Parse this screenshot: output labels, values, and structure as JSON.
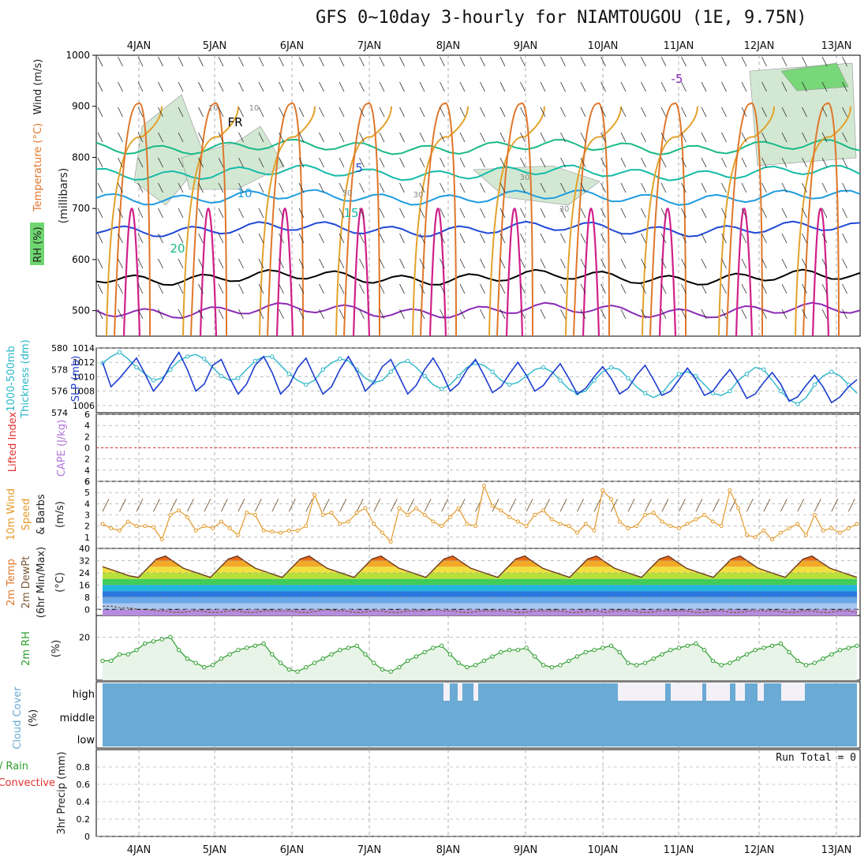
{
  "title": "GFS 0~10day 3-hourly for NIAMTOUGOU (1E, 9.75N)",
  "colors": {
    "grid": "#9a9a9a",
    "rh_fill": "#cfe6cf",
    "rh_dark": "#6fd66f",
    "temp_neg": "#8a2bb5",
    "temp_fr": "#000000",
    "temp_5": "#1f49d6",
    "temp_10": "#1f9ce0",
    "temp_15": "#14bba8",
    "temp_20": "#19b98a",
    "temp_25": "#e3a12a",
    "temp_30": "#e0762a",
    "temp_35": "#d0208a",
    "thickness": "#2bb6c9",
    "slp": "#1c3ccf",
    "li": "#e03030",
    "wind": "#e39a2a",
    "rh2m": "#2e9e2e",
    "cloud": "#6aaad4",
    "precip": "#2e9e2e"
  },
  "chart_data": [
    {
      "panel": "upper-air",
      "type": "contour",
      "ylabels": [
        "RH (%)",
        "Temperature (°C)",
        "Wind (m/s)"
      ],
      "yaxis_name": "(millibars)",
      "y_ticks": [
        "500",
        "600",
        "700",
        "800",
        "900",
        "1000"
      ],
      "ylim": [
        450,
        1000
      ],
      "x_ticks": [
        "4JAN",
        "5JAN",
        "6JAN",
        "7JAN",
        "8JAN",
        "9JAN",
        "10JAN",
        "11JAN",
        "12JAN",
        "13JAN"
      ],
      "contour_labels": [
        {
          "text": "-5",
          "level": 500
        },
        {
          "text": "FR",
          "level": 565
        },
        {
          "text": "5",
          "level": 670
        },
        {
          "text": "10",
          "level": 725
        },
        {
          "text": "15",
          "level": 765
        },
        {
          "text": "20",
          "level": 825
        }
      ],
      "rh_labels": [
        "10",
        "10",
        "30",
        "30",
        "30",
        "30"
      ],
      "isotherms": [
        {
          "name": "-5",
          "level": 500
        },
        {
          "name": "FR",
          "level": 565
        },
        {
          "name": "5",
          "level": 660
        },
        {
          "name": "10",
          "level": 722
        },
        {
          "name": "15",
          "level": 770
        },
        {
          "name": "20",
          "level": 820
        }
      ]
    },
    {
      "panel": "thickness-slp",
      "type": "line",
      "ylabels": [
        "1000-500mb",
        "Thickness (dm)",
        "SLP (mb)"
      ],
      "thickness_ticks": [
        "574",
        "576",
        "578",
        "580"
      ],
      "slp_ticks": [
        "1006",
        "1008",
        "1010",
        "1012",
        "1014"
      ],
      "thickness_ylim": [
        574,
        580
      ],
      "slp_ylim": [
        1005,
        1014
      ],
      "series": [
        {
          "type": "thickness",
          "values": [
            578.6,
            579.2,
            579.6,
            579.0,
            578.2,
            577.6,
            577.0,
            577.2,
            578.0,
            578.8,
            579.2,
            579.4,
            579.0,
            578.2,
            577.4,
            577.0,
            577.2,
            578.0,
            578.8,
            579.2,
            579.2,
            578.4,
            577.6,
            577.0,
            576.6,
            577.0,
            578.0,
            578.6,
            579.0,
            578.8,
            578.0,
            577.2,
            576.8,
            577.0,
            577.8,
            578.6,
            578.8,
            578.2,
            577.4,
            576.6,
            576.2,
            576.6,
            577.4,
            578.2,
            578.6,
            578.4,
            577.8,
            577.0,
            576.6,
            576.8,
            577.4,
            578.0,
            578.2,
            577.8,
            577.0,
            576.2,
            575.8,
            576.0,
            577.0,
            577.8,
            578.2,
            578.0,
            577.2,
            576.4,
            575.8,
            575.4,
            575.8,
            576.8,
            577.6,
            577.8,
            577.4,
            576.6,
            575.8,
            575.6,
            576.0,
            577.0,
            577.6,
            578.2,
            578.0,
            577.0,
            576.0,
            575.2,
            574.8,
            575.4,
            576.6,
            577.4,
            577.8,
            577.4,
            576.6,
            575.8
          ]
        },
        {
          "type": "slp",
          "values": [
            1012.0,
            1008.6,
            1009.8,
            1011.2,
            1012.6,
            1010.4,
            1008.0,
            1009.4,
            1011.6,
            1013.4,
            1011.0,
            1008.0,
            1009.0,
            1011.6,
            1012.4,
            1009.8,
            1007.6,
            1009.0,
            1011.6,
            1012.8,
            1010.6,
            1007.6,
            1008.8,
            1011.2,
            1012.6,
            1010.0,
            1007.6,
            1008.6,
            1011.0,
            1012.8,
            1010.8,
            1008.0,
            1009.2,
            1011.4,
            1012.4,
            1010.0,
            1007.6,
            1008.8,
            1011.0,
            1012.6,
            1010.6,
            1008.0,
            1009.0,
            1011.0,
            1012.4,
            1010.2,
            1007.8,
            1008.6,
            1010.4,
            1012.0,
            1010.2,
            1008.0,
            1008.8,
            1010.4,
            1011.8,
            1009.8,
            1007.6,
            1008.4,
            1010.0,
            1011.4,
            1009.8,
            1007.6,
            1008.4,
            1010.2,
            1011.6,
            1009.6,
            1007.4,
            1008.0,
            1009.6,
            1011.2,
            1009.6,
            1007.4,
            1008.0,
            1009.6,
            1011.0,
            1009.2,
            1007.0,
            1007.6,
            1009.2,
            1010.6,
            1009.0,
            1006.6,
            1007.2,
            1008.8,
            1010.2,
            1008.6,
            1006.4,
            1007.2,
            1008.6,
            1009.6
          ]
        }
      ]
    },
    {
      "panel": "cape-li",
      "type": "line",
      "ylabels": [
        "CAPE (J/kg)",
        "Lifted Index"
      ],
      "y_ticks": [
        "-6",
        "-4",
        "-2",
        "0",
        "2",
        "4",
        "6"
      ],
      "ylim": [
        -6,
        6
      ],
      "series": [
        {
          "type": "lifted_index",
          "values": [
            0
          ]
        }
      ]
    },
    {
      "panel": "wind10m",
      "type": "line",
      "ylabels": [
        "10m Wind",
        "Speed",
        "& Barbs"
      ],
      "yaxis_name": "(m/s)",
      "y_ticks": [
        "1",
        "2",
        "3",
        "4",
        "5",
        "6"
      ],
      "ylim": [
        0,
        6
      ],
      "series": [
        {
          "type": "wind_speed",
          "values": [
            2.2,
            1.8,
            1.6,
            2.4,
            2.0,
            2.0,
            1.9,
            0.8,
            3.0,
            3.4,
            2.8,
            1.6,
            2.0,
            1.8,
            2.4,
            1.8,
            1.2,
            3.2,
            3.0,
            1.6,
            1.5,
            1.4,
            1.6,
            1.6,
            2.0,
            4.8,
            3.0,
            3.2,
            2.2,
            2.4,
            3.2,
            3.6,
            2.2,
            1.4,
            0.6,
            3.6,
            3.0,
            3.6,
            3.0,
            2.4,
            2.0,
            2.8,
            3.6,
            2.2,
            2.0,
            5.6,
            3.8,
            3.4,
            2.8,
            2.4,
            2.0,
            3.0,
            3.4,
            2.6,
            2.2,
            2.0,
            1.4,
            2.2,
            1.6,
            5.2,
            4.4,
            2.4,
            1.8,
            2.0,
            3.0,
            3.2,
            2.4,
            2.0,
            1.8,
            2.2,
            2.6,
            3.0,
            2.4,
            2.0,
            5.2,
            3.6,
            1.2,
            1.0,
            1.6,
            0.8,
            1.4,
            1.8,
            2.2,
            1.2,
            3.0,
            1.6,
            1.8,
            1.4,
            1.8,
            2.2
          ]
        }
      ]
    },
    {
      "panel": "temp2m",
      "type": "area",
      "ylabels": [
        "2m Temp",
        "2m DewPt",
        "(6hr Min/Max)"
      ],
      "yaxis_name": "(°C)",
      "y_ticks": [
        "0",
        "8",
        "16",
        "24",
        "32",
        "40"
      ],
      "ylim": [
        -4,
        40
      ],
      "series": [
        {
          "type": "temperature",
          "values": [
            28,
            26,
            24,
            22,
            21,
            27,
            33,
            35,
            31,
            27,
            25,
            23,
            21,
            27,
            33,
            35,
            31,
            27,
            25,
            23,
            21,
            27,
            33,
            35,
            31,
            27,
            25,
            23,
            21,
            27,
            33,
            35,
            31,
            27,
            25,
            23,
            21,
            27,
            33,
            35,
            31,
            27,
            25,
            23,
            21,
            27,
            33,
            35,
            31,
            27,
            25,
            23,
            21,
            27,
            33,
            35,
            31,
            27,
            25,
            23,
            21,
            27,
            33,
            35,
            31,
            27,
            25,
            23,
            21,
            27,
            33,
            35,
            31,
            27,
            25,
            23,
            21,
            27,
            33,
            35,
            31,
            27,
            25,
            23,
            21
          ]
        },
        {
          "type": "dewpoint",
          "values": [
            2,
            2,
            1,
            1,
            0,
            0,
            -1,
            -1,
            -2,
            -2,
            -1,
            -1,
            -2,
            -2,
            -1,
            -1,
            -2,
            -2,
            -1,
            -1,
            -1,
            -1,
            -2,
            -2,
            -1,
            0,
            -1,
            -1,
            -2,
            -2,
            -1,
            -1,
            -2,
            -2,
            -1,
            -1,
            -1,
            0,
            -1,
            -1,
            -2,
            -2,
            -1,
            -1,
            -1,
            -1,
            -2,
            -2,
            -1,
            -1,
            -1,
            -1,
            -2,
            -2,
            -1,
            -1,
            -2,
            -1,
            -1,
            -1,
            -2,
            -2,
            -1,
            -1,
            -1,
            -1,
            -2,
            -2,
            -1,
            -1,
            -2,
            -2,
            -1,
            -1,
            -1,
            -1,
            -2,
            -2,
            -1,
            -1,
            -2,
            -2,
            -1,
            -1,
            -2
          ]
        }
      ]
    },
    {
      "panel": "rh2m",
      "type": "area",
      "ylabels": [
        "2m RH"
      ],
      "yaxis_name": "(%)",
      "y_ticks": [
        "20"
      ],
      "ylim": [
        0,
        30
      ],
      "series": [
        {
          "type": "rh",
          "values": [
            9,
            9,
            12,
            12,
            14,
            17,
            18,
            19,
            20,
            14,
            10,
            8,
            6,
            7,
            10,
            12,
            14,
            15,
            16,
            17,
            12,
            8,
            5,
            4,
            6,
            8,
            10,
            12,
            14,
            15,
            16,
            12,
            8,
            5,
            4,
            6,
            9,
            11,
            13,
            15,
            16,
            12,
            8,
            6,
            7,
            9,
            11,
            13,
            14,
            14,
            15,
            11,
            7,
            6,
            7,
            9,
            11,
            13,
            14,
            15,
            16,
            13,
            8,
            7,
            8,
            10,
            12,
            14,
            15,
            16,
            17,
            14,
            9,
            7,
            8,
            10,
            12,
            14,
            15,
            16,
            17,
            13,
            9,
            7,
            8,
            10,
            12,
            14,
            15,
            16
          ]
        }
      ]
    },
    {
      "panel": "cloud",
      "type": "bar",
      "ylabels": [
        "Cloud Cover"
      ],
      "yaxis_name": "(%)",
      "y_ticks": [
        "high",
        "middle",
        "low"
      ]
    },
    {
      "panel": "precip",
      "type": "bar",
      "ylabels": [
        "Total / Rain",
        "Convective"
      ],
      "yaxis_name": "3hr Precip (mm)",
      "y_ticks": [
        "0",
        "0.2",
        "0.4",
        "0.6",
        "0.8"
      ],
      "ylim": [
        0,
        1.0
      ],
      "run_total_label": "Run Total = 0",
      "values": [
        0
      ]
    }
  ]
}
